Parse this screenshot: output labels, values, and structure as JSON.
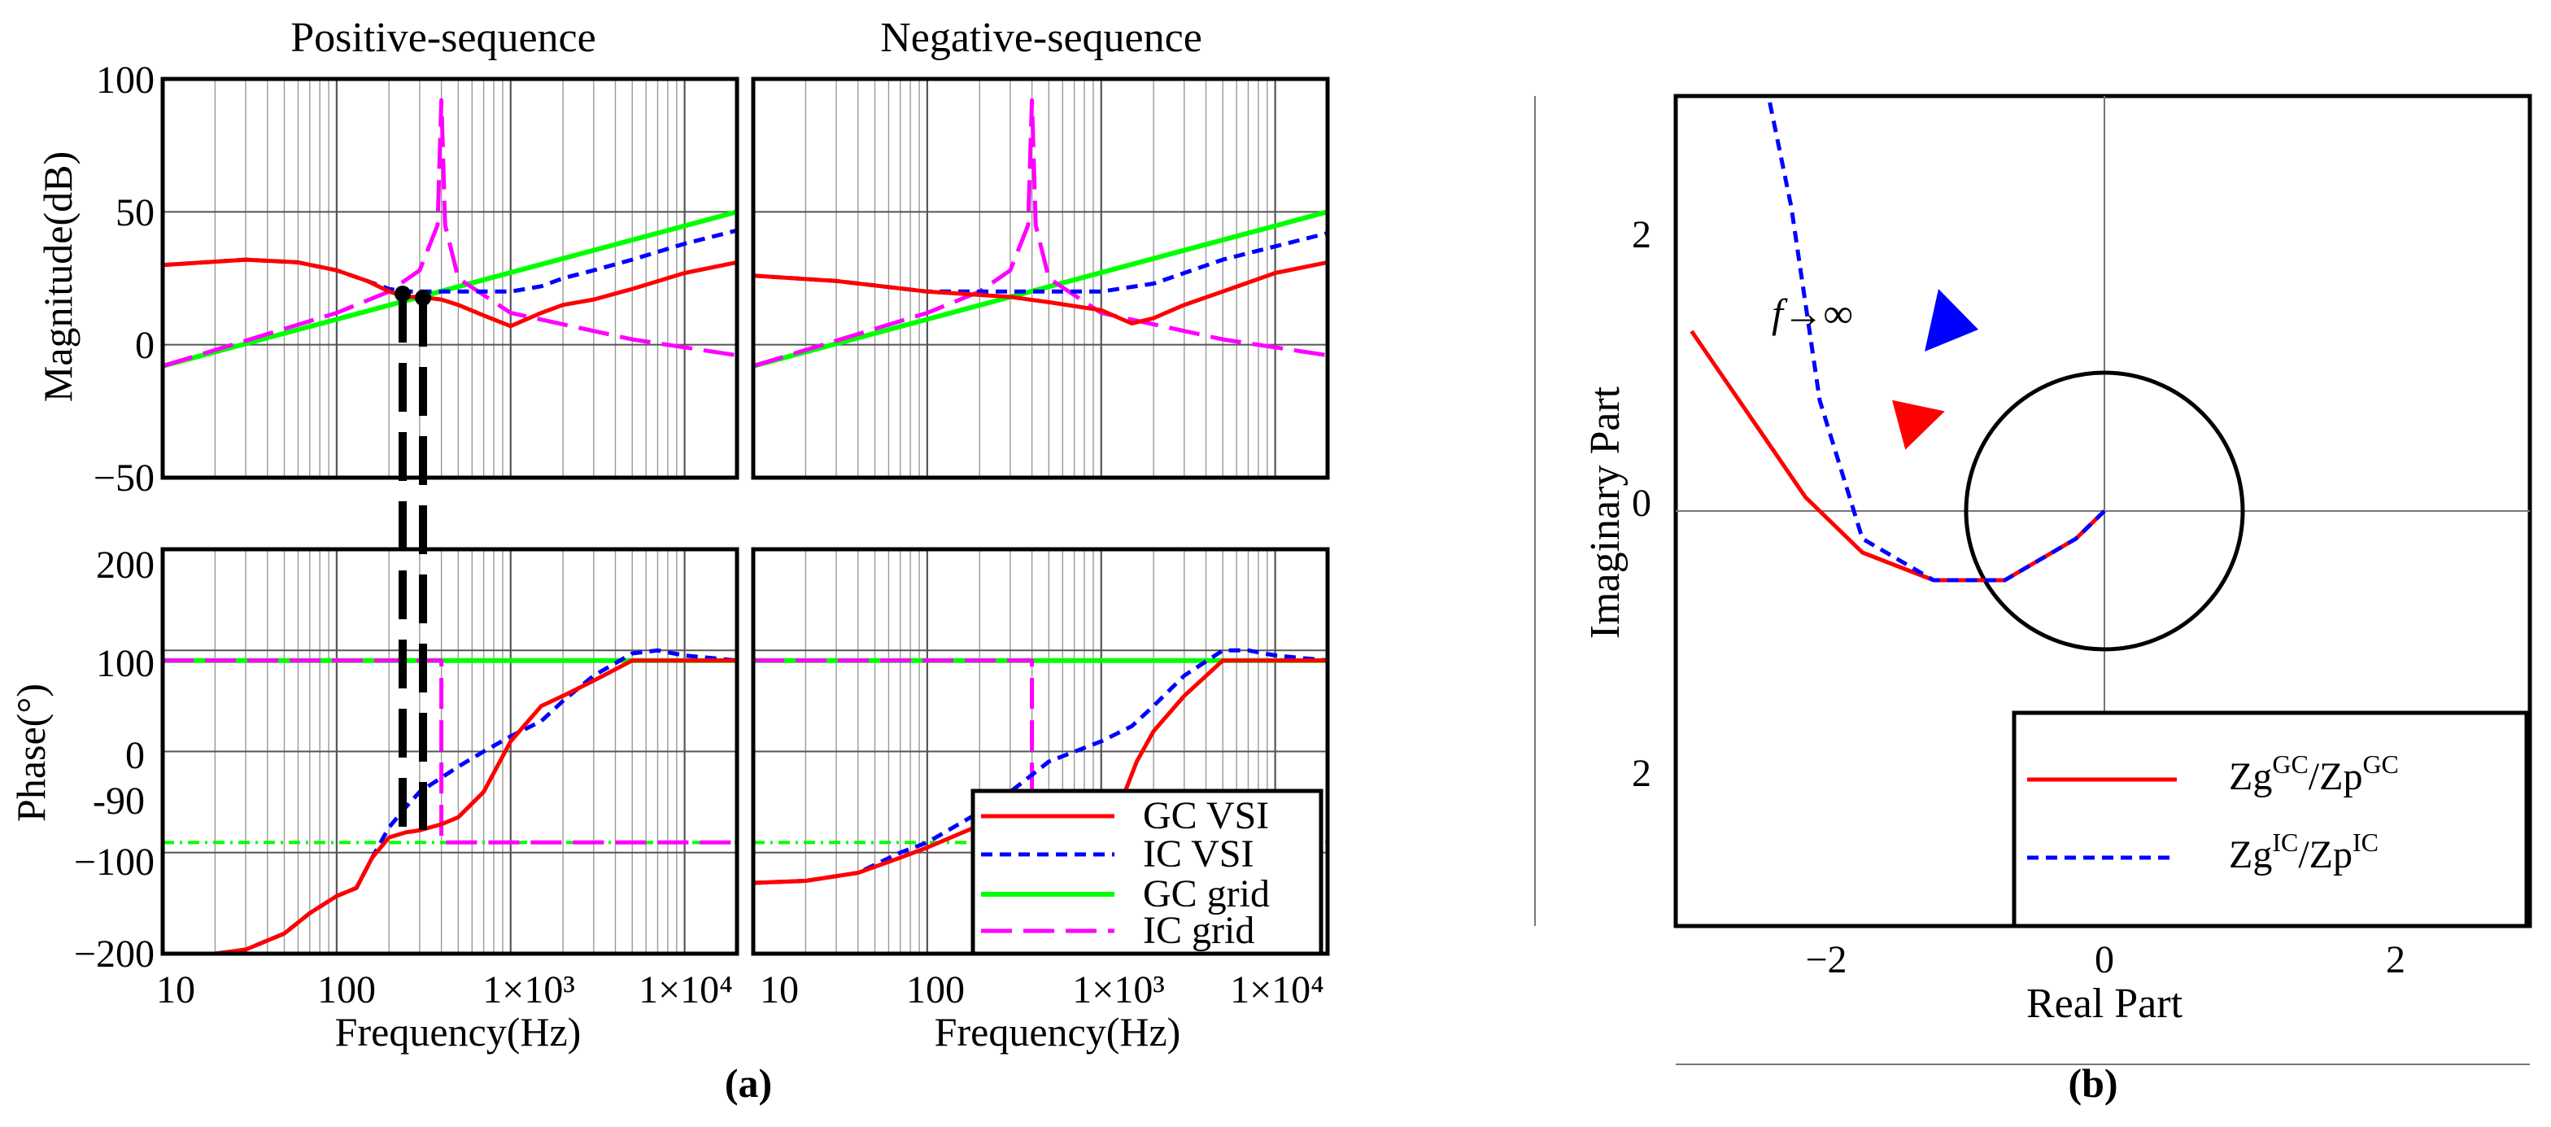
{
  "panel_a": {
    "label": "(a)",
    "col_titles": [
      "Positive-sequence",
      "Negative-sequence"
    ],
    "mag_ylabel": "Magnitude(dB)",
    "phase_ylabel": "Phase(°)",
    "xlabel": "Frequency(Hz)",
    "mag_yticks": [
      "100",
      "50",
      "0",
      "−50"
    ],
    "phase_yticks": [
      "200",
      "100",
      "0",
      "-90",
      "−100",
      "−200"
    ],
    "xticks": [
      "10",
      "100",
      "1×10³",
      "1×10⁴"
    ]
  },
  "legend_a": [
    {
      "label": "GC VSI",
      "color": "#ff0000",
      "style": "solid"
    },
    {
      "label": "IC VSI",
      "color": "#0000ff",
      "style": "dashed"
    },
    {
      "label": "GC grid",
      "color": "#00ff00",
      "style": "solid"
    },
    {
      "label": "IC grid",
      "color": "#ff00ff",
      "style": "longdash"
    }
  ],
  "panel_b": {
    "label": "(b)",
    "xlabel": "Real Part",
    "ylabel": "Imaginary Part",
    "xticks": [
      "−2",
      "0",
      "2"
    ],
    "yticks": [
      "2",
      "0",
      "2"
    ],
    "annotation": "f→∞",
    "legend": [
      {
        "base1": "Zg",
        "sup1": "GC",
        "base2": "/Zp",
        "sup2": "GC",
        "color": "#ff0000",
        "style": "solid"
      },
      {
        "base1": "Zg",
        "sup1": "IC",
        "base2": "/Zp",
        "sup2": "IC",
        "color": "#0000ff",
        "style": "dashed"
      }
    ]
  },
  "chart_data": [
    {
      "type": "line",
      "title": "Positive-sequence",
      "subplot": "magnitude",
      "xscale": "log",
      "xlim": [
        10,
        20000
      ],
      "ylim": [
        -50,
        100
      ],
      "xlabel": "Frequency(Hz)",
      "ylabel": "Magnitude(dB)",
      "series": [
        {
          "name": "GC VSI",
          "color": "#ff0000",
          "style": "solid",
          "x": [
            10,
            30,
            60,
            100,
            150,
            200,
            250,
            300,
            400,
            500,
            700,
            1000,
            1500,
            2000,
            3000,
            5000,
            10000,
            20000
          ],
          "y": [
            30,
            32,
            31,
            28,
            24,
            20,
            18,
            18,
            17,
            15,
            11,
            7,
            12,
            15,
            17,
            21,
            27,
            31
          ]
        },
        {
          "name": "IC VSI",
          "color": "#0000ff",
          "style": "dashed",
          "x": [
            10,
            30,
            60,
            100,
            150,
            200,
            250,
            300,
            500,
            1000,
            1500,
            2000,
            3000,
            5000,
            10000,
            20000
          ],
          "y": [
            30,
            32,
            31,
            28,
            24,
            21,
            20,
            20,
            20,
            20,
            22,
            25,
            28,
            32,
            38,
            43
          ]
        },
        {
          "name": "GC grid",
          "color": "#00ff00",
          "style": "solid",
          "x": [
            10,
            20000
          ],
          "y": [
            -8,
            50
          ]
        },
        {
          "name": "IC grid",
          "color": "#ff00ff",
          "style": "longdash",
          "x": [
            10,
            100,
            200,
            300,
            380,
            400,
            420,
            500,
            1000,
            5000,
            20000
          ],
          "y": [
            -8,
            12,
            20,
            28,
            45,
            92,
            45,
            25,
            12,
            2,
            -4
          ]
        }
      ]
    },
    {
      "type": "line",
      "title": "Negative-sequence",
      "subplot": "magnitude",
      "xscale": "log",
      "xlim": [
        10,
        20000
      ],
      "ylim": [
        -50,
        100
      ],
      "series": [
        {
          "name": "GC VSI",
          "color": "#ff0000",
          "style": "solid",
          "x": [
            10,
            30,
            100,
            300,
            500,
            1000,
            1500,
            2000,
            3000,
            5000,
            10000,
            20000
          ],
          "y": [
            26,
            24,
            20,
            18,
            16,
            13,
            8,
            10,
            15,
            20,
            27,
            31
          ]
        },
        {
          "name": "IC VSI",
          "color": "#0000ff",
          "style": "dashed",
          "x": [
            10,
            30,
            100,
            300,
            1000,
            2000,
            3000,
            5000,
            10000,
            20000
          ],
          "y": [
            26,
            24,
            20,
            20,
            20,
            23,
            27,
            32,
            37,
            42
          ]
        },
        {
          "name": "GC grid",
          "color": "#00ff00",
          "style": "solid",
          "x": [
            10,
            20000
          ],
          "y": [
            -8,
            50
          ]
        },
        {
          "name": "IC grid",
          "color": "#ff00ff",
          "style": "longdash",
          "x": [
            10,
            100,
            200,
            300,
            380,
            400,
            420,
            500,
            1000,
            5000,
            20000
          ],
          "y": [
            -8,
            12,
            20,
            28,
            45,
            92,
            45,
            25,
            12,
            2,
            -4
          ]
        }
      ]
    },
    {
      "type": "line",
      "title": "Positive-sequence",
      "subplot": "phase",
      "xscale": "log",
      "xlim": [
        10,
        20000
      ],
      "ylim": [
        -200,
        200
      ],
      "xlabel": "Frequency(Hz)",
      "ylabel": "Phase(°)",
      "series": [
        {
          "name": "GC VSI",
          "color": "#ff0000",
          "style": "solid",
          "x": [
            10,
            20,
            30,
            50,
            70,
            100,
            130,
            160,
            200,
            250,
            300,
            400,
            500,
            700,
            1000,
            1500,
            2000,
            3000,
            5000,
            10000,
            20000
          ],
          "y": [
            -200,
            -200,
            -196,
            -180,
            -160,
            -143,
            -135,
            -105,
            -85,
            -80,
            -78,
            -72,
            -65,
            -40,
            10,
            45,
            55,
            70,
            90,
            90,
            90
          ]
        },
        {
          "name": "IC VSI",
          "color": "#0000ff",
          "style": "dashed",
          "x": [
            10,
            20,
            30,
            50,
            70,
            100,
            130,
            160,
            200,
            250,
            300,
            500,
            700,
            1000,
            1500,
            2000,
            3000,
            5000,
            7000,
            10000,
            20000
          ],
          "y": [
            -200,
            -200,
            -196,
            -180,
            -160,
            -143,
            -135,
            -105,
            -75,
            -55,
            -40,
            -15,
            0,
            15,
            30,
            50,
            75,
            97,
            100,
            95,
            90
          ]
        },
        {
          "name": "GC grid",
          "color": "#00ff00",
          "style": "solid",
          "x": [
            10,
            20000
          ],
          "y": [
            90,
            90
          ]
        },
        {
          "name": "IC grid",
          "color": "#ff00ff",
          "style": "longdash",
          "x": [
            10,
            400,
            400,
            20000
          ],
          "y": [
            90,
            90,
            -90,
            -90
          ]
        }
      ]
    },
    {
      "type": "line",
      "title": "Negative-sequence",
      "subplot": "phase",
      "xscale": "log",
      "xlim": [
        10,
        20000
      ],
      "ylim": [
        -200,
        200
      ],
      "xlabel": "Frequency(Hz)",
      "series": [
        {
          "name": "GC VSI",
          "color": "#ff0000",
          "style": "solid",
          "x": [
            10,
            20,
            40,
            70,
            100,
            200,
            300,
            500,
            1000,
            1300,
            1600,
            2000,
            3000,
            5000,
            10000,
            20000
          ],
          "y": [
            -130,
            -128,
            -120,
            -105,
            -95,
            -73,
            -65,
            -60,
            -60,
            -50,
            -10,
            20,
            55,
            90,
            90,
            90
          ]
        },
        {
          "name": "IC VSI",
          "color": "#0000ff",
          "style": "dashed",
          "x": [
            10,
            20,
            40,
            70,
            100,
            200,
            300,
            500,
            1000,
            1500,
            2000,
            3000,
            5000,
            7000,
            10000,
            20000
          ],
          "y": [
            -130,
            -128,
            -120,
            -100,
            -90,
            -60,
            -40,
            -10,
            10,
            25,
            45,
            75,
            100,
            100,
            95,
            90
          ]
        },
        {
          "name": "GC grid",
          "color": "#00ff00",
          "style": "solid",
          "x": [
            10,
            20000
          ],
          "y": [
            90,
            90
          ]
        },
        {
          "name": "IC grid",
          "color": "#ff00ff",
          "style": "longdash",
          "x": [
            10,
            400,
            400,
            20000
          ],
          "y": [
            90,
            90,
            -90,
            -90
          ]
        }
      ]
    },
    {
      "type": "line",
      "title": "Nyquist",
      "xlabel": "Real Part",
      "ylabel": "Imaginary Part",
      "xlim": [
        -3,
        3
      ],
      "ylim": [
        -3,
        3
      ],
      "unit_circle": true,
      "series": [
        {
          "name": "Zg^GC/Zp^GC",
          "color": "#ff0000",
          "style": "solid",
          "x": [
            0,
            -0.1,
            -0.35,
            -0.6,
            -0.85,
            -1.05,
            -1.25,
            -1.45
          ],
          "y": [
            0,
            -0.1,
            -0.25,
            -0.25,
            -0.15,
            0.05,
            0.35,
            0.65
          ]
        },
        {
          "name": "Zg^IC/Zp^IC",
          "color": "#0000ff",
          "style": "dashed",
          "x": [
            0,
            -0.1,
            -0.35,
            -0.6,
            -0.85,
            -1.0,
            -1.1,
            -1.2,
            -1.3,
            -1.35
          ],
          "y": [
            0,
            -0.1,
            -0.25,
            -0.25,
            -0.1,
            0.4,
            1.1,
            1.6,
            2.1,
            2.45
          ]
        }
      ]
    }
  ]
}
